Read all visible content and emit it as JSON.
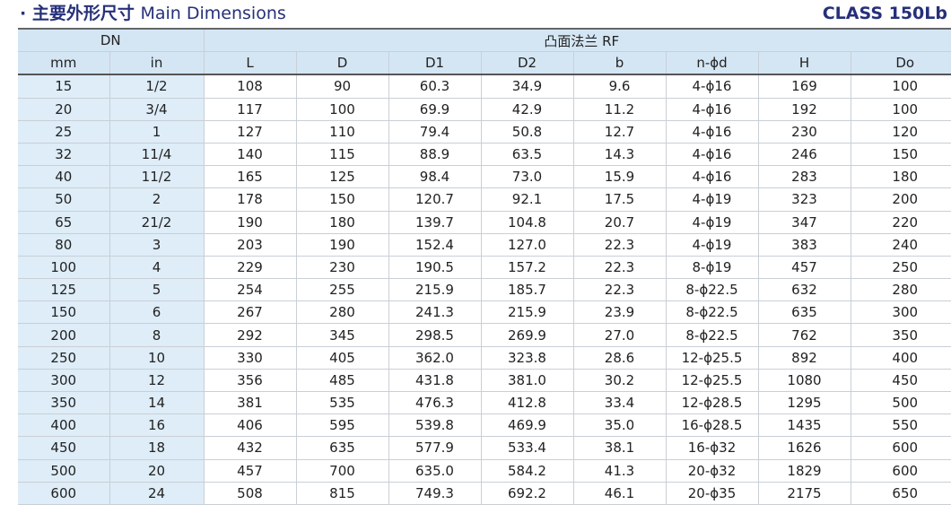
{
  "title": {
    "cn": "主要外形尺寸",
    "en": "Main Dimensions",
    "bullet": "·"
  },
  "class_label": "CLASS 150Lb",
  "header": {
    "dn": "DN",
    "rf": "凸面法兰 RF",
    "columns": [
      "mm",
      "in",
      "L",
      "D",
      "D1",
      "D2",
      "b",
      "n-ϕd",
      "H",
      "Do"
    ]
  },
  "rows": [
    [
      "15",
      "1/2",
      "108",
      "90",
      "60.3",
      "34.9",
      "9.6",
      "4-ϕ16",
      "169",
      "100"
    ],
    [
      "20",
      "3/4",
      "117",
      "100",
      "69.9",
      "42.9",
      "11.2",
      "4-ϕ16",
      "192",
      "100"
    ],
    [
      "25",
      "1",
      "127",
      "110",
      "79.4",
      "50.8",
      "12.7",
      "4-ϕ16",
      "230",
      "120"
    ],
    [
      "32",
      "11/4",
      "140",
      "115",
      "88.9",
      "63.5",
      "14.3",
      "4-ϕ16",
      "246",
      "150"
    ],
    [
      "40",
      "11/2",
      "165",
      "125",
      "98.4",
      "73.0",
      "15.9",
      "4-ϕ16",
      "283",
      "180"
    ],
    [
      "50",
      "2",
      "178",
      "150",
      "120.7",
      "92.1",
      "17.5",
      "4-ϕ19",
      "323",
      "200"
    ],
    [
      "65",
      "21/2",
      "190",
      "180",
      "139.7",
      "104.8",
      "20.7",
      "4-ϕ19",
      "347",
      "220"
    ],
    [
      "80",
      "3",
      "203",
      "190",
      "152.4",
      "127.0",
      "22.3",
      "4-ϕ19",
      "383",
      "240"
    ],
    [
      "100",
      "4",
      "229",
      "230",
      "190.5",
      "157.2",
      "22.3",
      "8-ϕ19",
      "457",
      "250"
    ],
    [
      "125",
      "5",
      "254",
      "255",
      "215.9",
      "185.7",
      "22.3",
      "8-ϕ22.5",
      "632",
      "280"
    ],
    [
      "150",
      "6",
      "267",
      "280",
      "241.3",
      "215.9",
      "23.9",
      "8-ϕ22.5",
      "635",
      "300"
    ],
    [
      "200",
      "8",
      "292",
      "345",
      "298.5",
      "269.9",
      "27.0",
      "8-ϕ22.5",
      "762",
      "350"
    ],
    [
      "250",
      "10",
      "330",
      "405",
      "362.0",
      "323.8",
      "28.6",
      "12-ϕ25.5",
      "892",
      "400"
    ],
    [
      "300",
      "12",
      "356",
      "485",
      "431.8",
      "381.0",
      "30.2",
      "12-ϕ25.5",
      "1080",
      "450"
    ],
    [
      "350",
      "14",
      "381",
      "535",
      "476.3",
      "412.8",
      "33.4",
      "12-ϕ28.5",
      "1295",
      "500"
    ],
    [
      "400",
      "16",
      "406",
      "595",
      "539.8",
      "469.9",
      "35.0",
      "16-ϕ28.5",
      "1435",
      "550"
    ],
    [
      "450",
      "18",
      "432",
      "635",
      "577.9",
      "533.4",
      "38.1",
      "16-ϕ32",
      "1626",
      "600"
    ],
    [
      "500",
      "20",
      "457",
      "700",
      "635.0",
      "584.2",
      "41.3",
      "20-ϕ32",
      "1829",
      "600"
    ],
    [
      "600",
      "24",
      "508",
      "815",
      "749.3",
      "692.2",
      "46.1",
      "20-ϕ35",
      "2175",
      "650"
    ]
  ]
}
